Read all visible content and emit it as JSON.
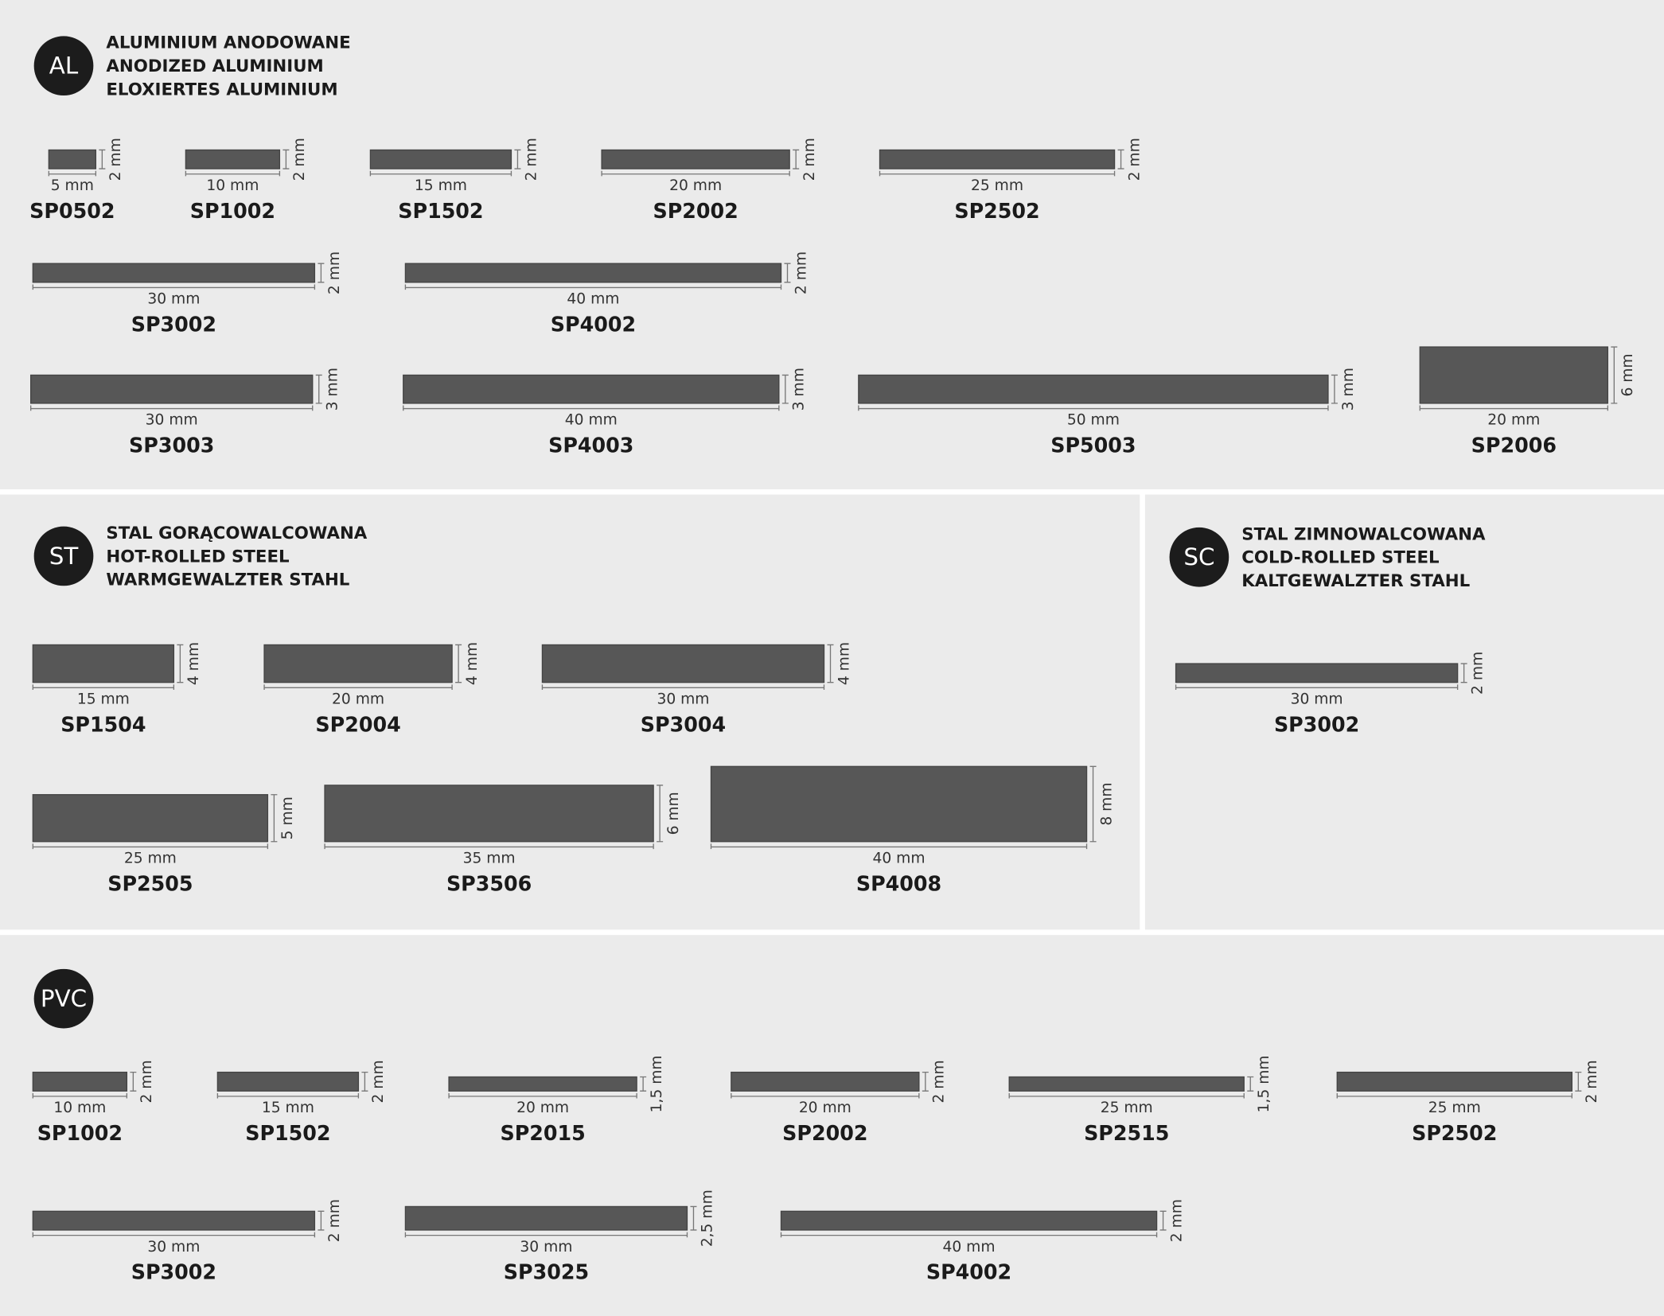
{
  "sections": [
    {
      "badge": "AL",
      "title": [
        "ALUMINIUM ANODOWANE",
        "ANODIZED ALUMINIUM",
        "ELOXIERTES ALUMINIUM"
      ],
      "rows": [
        [
          {
            "code": "SP0502",
            "width": {
              "value": 5,
              "label": "5 mm"
            },
            "height": {
              "value": 2,
              "label": "2 mm"
            }
          },
          {
            "code": "SP1002",
            "width": {
              "value": 10,
              "label": "10 mm"
            },
            "height": {
              "value": 2,
              "label": "2 mm"
            }
          },
          {
            "code": "SP1502",
            "width": {
              "value": 15,
              "label": "15 mm"
            },
            "height": {
              "value": 2,
              "label": "2 mm"
            }
          },
          {
            "code": "SP2002",
            "width": {
              "value": 20,
              "label": "20 mm"
            },
            "height": {
              "value": 2,
              "label": "2 mm"
            }
          },
          {
            "code": "SP2502",
            "width": {
              "value": 25,
              "label": "25 mm"
            },
            "height": {
              "value": 2,
              "label": "2 mm"
            }
          }
        ],
        [
          {
            "code": "SP3002",
            "width": {
              "value": 30,
              "label": "30 mm"
            },
            "height": {
              "value": 2,
              "label": "2 mm"
            }
          },
          {
            "code": "SP4002",
            "width": {
              "value": 40,
              "label": "40 mm"
            },
            "height": {
              "value": 2,
              "label": "2 mm"
            }
          }
        ],
        [
          {
            "code": "SP3003",
            "width": {
              "value": 30,
              "label": "30 mm"
            },
            "height": {
              "value": 3,
              "label": "3 mm"
            }
          },
          {
            "code": "SP4003",
            "width": {
              "value": 40,
              "label": "40 mm"
            },
            "height": {
              "value": 3,
              "label": "3 mm"
            }
          },
          {
            "code": "SP5003",
            "width": {
              "value": 50,
              "label": "50 mm"
            },
            "height": {
              "value": 3,
              "label": "3 mm"
            }
          },
          {
            "code": "SP2006",
            "width": {
              "value": 20,
              "label": "20 mm"
            },
            "height": {
              "value": 6,
              "label": "6 mm"
            }
          }
        ]
      ]
    },
    {
      "badge": "ST",
      "title": [
        "STAL GORĄCOWALCOWANA",
        "HOT-ROLLED STEEL",
        "WARMGEWALZTER STAHL"
      ],
      "rows": [
        [
          {
            "code": "SP1504",
            "width": {
              "value": 15,
              "label": "15 mm"
            },
            "height": {
              "value": 4,
              "label": "4 mm"
            }
          },
          {
            "code": "SP2004",
            "width": {
              "value": 20,
              "label": "20 mm"
            },
            "height": {
              "value": 4,
              "label": "4 mm"
            }
          },
          {
            "code": "SP3004",
            "width": {
              "value": 30,
              "label": "30 mm"
            },
            "height": {
              "value": 4,
              "label": "4 mm"
            }
          }
        ],
        [
          {
            "code": "SP2505",
            "width": {
              "value": 25,
              "label": "25 mm"
            },
            "height": {
              "value": 5,
              "label": "5 mm"
            }
          },
          {
            "code": "SP3506",
            "width": {
              "value": 35,
              "label": "35 mm"
            },
            "height": {
              "value": 6,
              "label": "6 mm"
            }
          },
          {
            "code": "SP4008",
            "width": {
              "value": 40,
              "label": "40 mm"
            },
            "height": {
              "value": 8,
              "label": "8 mm"
            }
          }
        ]
      ]
    },
    {
      "badge": "SC",
      "title": [
        "STAL ZIMNOWALCOWANA",
        "COLD-ROLLED STEEL",
        "KALTGEWALZTER STAHL"
      ],
      "rows": [
        [
          {
            "code": "SP3002",
            "width": {
              "value": 30,
              "label": "30 mm"
            },
            "height": {
              "value": 2,
              "label": "2 mm"
            }
          }
        ]
      ]
    },
    {
      "badge": "PVC",
      "rows": [
        [
          {
            "code": "SP1002",
            "width": {
              "value": 10,
              "label": "10 mm"
            },
            "height": {
              "value": 2,
              "label": "2 mm"
            }
          },
          {
            "code": "SP1502",
            "width": {
              "value": 15,
              "label": "15 mm"
            },
            "height": {
              "value": 2,
              "label": "2 mm"
            }
          },
          {
            "code": "SP2015",
            "width": {
              "value": 20,
              "label": "20 mm"
            },
            "height": {
              "value": 1.5,
              "label": "1,5 mm"
            }
          },
          {
            "code": "SP2002",
            "width": {
              "value": 20,
              "label": "20 mm"
            },
            "height": {
              "value": 2,
              "label": "2 mm"
            }
          },
          {
            "code": "SP2515",
            "width": {
              "value": 25,
              "label": "25 mm"
            },
            "height": {
              "value": 1.5,
              "label": "1,5 mm"
            }
          },
          {
            "code": "SP2502",
            "width": {
              "value": 25,
              "label": "25 mm"
            },
            "height": {
              "value": 2,
              "label": "2 mm"
            }
          }
        ],
        [
          {
            "code": "SP3002",
            "width": {
              "value": 30,
              "label": "30 mm"
            },
            "height": {
              "value": 2,
              "label": "2 mm"
            }
          },
          {
            "code": "SP3025",
            "width": {
              "value": 30,
              "label": "30 mm"
            },
            "height": {
              "value": 2.5,
              "label": "2,5 mm"
            }
          },
          {
            "code": "SP4002",
            "width": {
              "value": 40,
              "label": "40 mm"
            },
            "height": {
              "value": 2,
              "label": "2 mm"
            }
          }
        ]
      ]
    }
  ]
}
